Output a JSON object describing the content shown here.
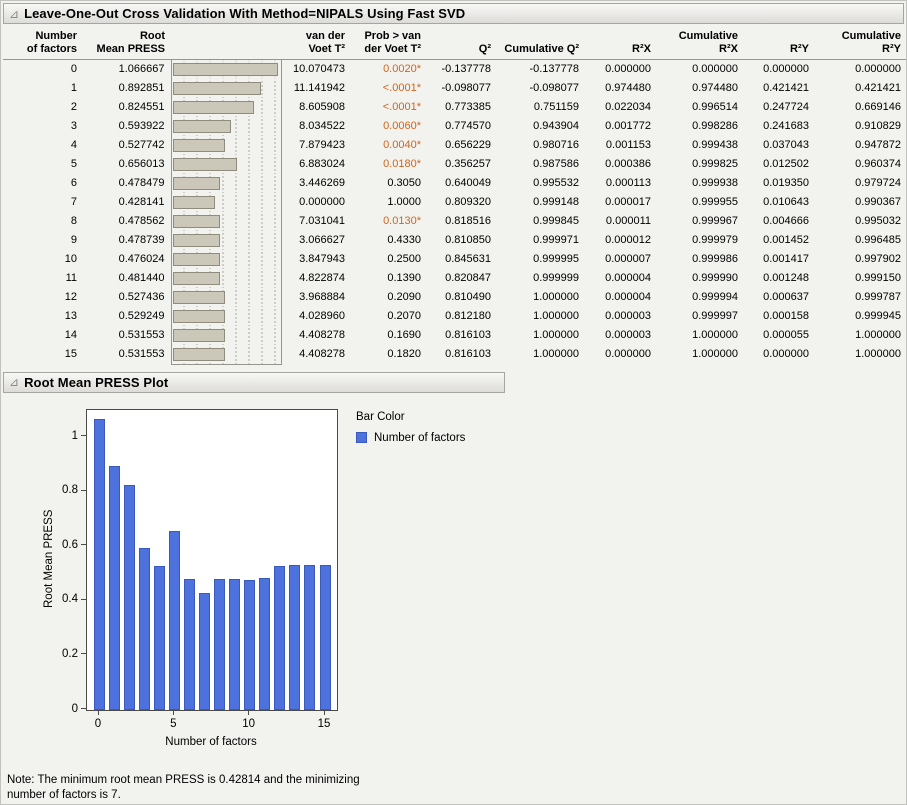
{
  "sections": {
    "cross_validation": {
      "title": "Leave-One-Out Cross Validation With Method=NIPALS Using Fast SVD"
    },
    "press_plot": {
      "title": "Root Mean PRESS Plot"
    }
  },
  "table": {
    "bar_axis_max": 1.1,
    "bar_fill": "#cbc8ba",
    "bar_border": "#8f8b7d",
    "sig_color": "#cd661d",
    "columns": [
      {
        "key": "factors",
        "label": "Number\nof factors",
        "width": 80,
        "type": "num"
      },
      {
        "key": "rmpress",
        "label": "Root\nMean PRESS",
        "width": 88,
        "type": "num"
      },
      {
        "key": "bar",
        "label": "",
        "width": 110,
        "type": "bar"
      },
      {
        "key": "voet",
        "label": "van der\nVoet T²",
        "width": 70,
        "type": "num"
      },
      {
        "key": "prob",
        "label": "Prob > van\nder Voet T²",
        "width": 76,
        "type": "prob"
      },
      {
        "key": "q2",
        "label": "Q²",
        "width": 70,
        "type": "num"
      },
      {
        "key": "cumq2",
        "label": "Cumulative Q²",
        "width": 88,
        "type": "num"
      },
      {
        "key": "r2x",
        "label": "R²X",
        "width": 72,
        "type": "num"
      },
      {
        "key": "cumr2x",
        "label": "Cumulative\nR²X",
        "width": 87,
        "type": "num"
      },
      {
        "key": "r2y",
        "label": "R²Y",
        "width": 71,
        "type": "num"
      },
      {
        "key": "cumr2y",
        "label": "Cumulative\nR²Y",
        "width": 92,
        "type": "num"
      }
    ],
    "rows": [
      {
        "factors": "0",
        "rmpress": "1.066667",
        "voet": "10.070473",
        "prob": "0.0020*",
        "starred": true,
        "q2": "-0.137778",
        "cumq2": "-0.137778",
        "r2x": "0.000000",
        "cumr2x": "0.000000",
        "r2y": "0.000000",
        "cumr2y": "0.000000"
      },
      {
        "factors": "1",
        "rmpress": "0.892851",
        "voet": "11.141942",
        "prob": "<.0001*",
        "starred": true,
        "q2": "-0.098077",
        "cumq2": "-0.098077",
        "r2x": "0.974480",
        "cumr2x": "0.974480",
        "r2y": "0.421421",
        "cumr2y": "0.421421"
      },
      {
        "factors": "2",
        "rmpress": "0.824551",
        "voet": "8.605908",
        "prob": "<.0001*",
        "starred": true,
        "q2": "0.773385",
        "cumq2": "0.751159",
        "r2x": "0.022034",
        "cumr2x": "0.996514",
        "r2y": "0.247724",
        "cumr2y": "0.669146"
      },
      {
        "factors": "3",
        "rmpress": "0.593922",
        "voet": "8.034522",
        "prob": "0.0060*",
        "starred": true,
        "q2": "0.774570",
        "cumq2": "0.943904",
        "r2x": "0.001772",
        "cumr2x": "0.998286",
        "r2y": "0.241683",
        "cumr2y": "0.910829"
      },
      {
        "factors": "4",
        "rmpress": "0.527742",
        "voet": "7.879423",
        "prob": "0.0040*",
        "starred": true,
        "q2": "0.656229",
        "cumq2": "0.980716",
        "r2x": "0.001153",
        "cumr2x": "0.999438",
        "r2y": "0.037043",
        "cumr2y": "0.947872"
      },
      {
        "factors": "5",
        "rmpress": "0.656013",
        "voet": "6.883024",
        "prob": "0.0180*",
        "starred": true,
        "q2": "0.356257",
        "cumq2": "0.987586",
        "r2x": "0.000386",
        "cumr2x": "0.999825",
        "r2y": "0.012502",
        "cumr2y": "0.960374"
      },
      {
        "factors": "6",
        "rmpress": "0.478479",
        "voet": "3.446269",
        "prob": "0.3050",
        "starred": false,
        "q2": "0.640049",
        "cumq2": "0.995532",
        "r2x": "0.000113",
        "cumr2x": "0.999938",
        "r2y": "0.019350",
        "cumr2y": "0.979724"
      },
      {
        "factors": "7",
        "rmpress": "0.428141",
        "voet": "0.000000",
        "prob": "1.0000",
        "starred": false,
        "q2": "0.809320",
        "cumq2": "0.999148",
        "r2x": "0.000017",
        "cumr2x": "0.999955",
        "r2y": "0.010643",
        "cumr2y": "0.990367"
      },
      {
        "factors": "8",
        "rmpress": "0.478562",
        "voet": "7.031041",
        "prob": "0.0130*",
        "starred": true,
        "q2": "0.818516",
        "cumq2": "0.999845",
        "r2x": "0.000011",
        "cumr2x": "0.999967",
        "r2y": "0.004666",
        "cumr2y": "0.995032"
      },
      {
        "factors": "9",
        "rmpress": "0.478739",
        "voet": "3.066627",
        "prob": "0.4330",
        "starred": false,
        "q2": "0.810850",
        "cumq2": "0.999971",
        "r2x": "0.000012",
        "cumr2x": "0.999979",
        "r2y": "0.001452",
        "cumr2y": "0.996485"
      },
      {
        "factors": "10",
        "rmpress": "0.476024",
        "voet": "3.847943",
        "prob": "0.2500",
        "starred": false,
        "q2": "0.845631",
        "cumq2": "0.999995",
        "r2x": "0.000007",
        "cumr2x": "0.999986",
        "r2y": "0.001417",
        "cumr2y": "0.997902"
      },
      {
        "factors": "11",
        "rmpress": "0.481440",
        "voet": "4.822874",
        "prob": "0.1390",
        "starred": false,
        "q2": "0.820847",
        "cumq2": "0.999999",
        "r2x": "0.000004",
        "cumr2x": "0.999990",
        "r2y": "0.001248",
        "cumr2y": "0.999150"
      },
      {
        "factors": "12",
        "rmpress": "0.527436",
        "voet": "3.968884",
        "prob": "0.2090",
        "starred": false,
        "q2": "0.810490",
        "cumq2": "1.000000",
        "r2x": "0.000004",
        "cumr2x": "0.999994",
        "r2y": "0.000637",
        "cumr2y": "0.999787"
      },
      {
        "factors": "13",
        "rmpress": "0.529249",
        "voet": "4.028960",
        "prob": "0.2070",
        "starred": false,
        "q2": "0.812180",
        "cumq2": "1.000000",
        "r2x": "0.000003",
        "cumr2x": "0.999997",
        "r2y": "0.000158",
        "cumr2y": "0.999945"
      },
      {
        "factors": "14",
        "rmpress": "0.531553",
        "voet": "4.408278",
        "prob": "0.1690",
        "starred": false,
        "q2": "0.816103",
        "cumq2": "1.000000",
        "r2x": "0.000003",
        "cumr2x": "1.000000",
        "r2y": "0.000055",
        "cumr2y": "1.000000"
      },
      {
        "factors": "15",
        "rmpress": "0.531553",
        "voet": "4.408278",
        "prob": "0.1820",
        "starred": false,
        "q2": "0.816103",
        "cumq2": "1.000000",
        "r2x": "0.000000",
        "cumr2x": "1.000000",
        "r2y": "0.000000",
        "cumr2y": "1.000000"
      }
    ]
  },
  "chart_data": {
    "type": "bar",
    "title": "Root Mean PRESS Plot",
    "x": [
      0,
      1,
      2,
      3,
      4,
      5,
      6,
      7,
      8,
      9,
      10,
      11,
      12,
      13,
      14,
      15
    ],
    "values": [
      1.066667,
      0.892851,
      0.824551,
      0.593922,
      0.527742,
      0.656013,
      0.478479,
      0.428141,
      0.478562,
      0.478739,
      0.476024,
      0.48144,
      0.527436,
      0.529249,
      0.531553,
      0.531553
    ],
    "xlabel": "Number of factors",
    "ylabel": "Root Mean PRESS",
    "ylim": [
      0,
      1.1
    ],
    "yticks": [
      0,
      0.2,
      0.4,
      0.6,
      0.8,
      1
    ],
    "xticks": [
      0,
      5,
      10,
      15
    ],
    "bar_color": "#4d72de",
    "bar_border": "#3a59bd",
    "legend": {
      "title": "Bar Color",
      "entries": [
        {
          "label": "Number of factors"
        }
      ]
    }
  },
  "note": "Note: The minimum root mean PRESS is 0.42814 and the minimizing number of factors is 7."
}
